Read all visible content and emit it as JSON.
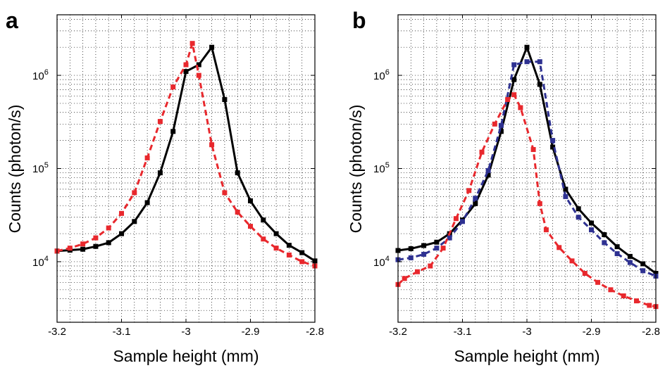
{
  "chart_data": [
    {
      "panel": "a",
      "type": "line",
      "xlabel": "Sample height (mm)",
      "ylabel": "Counts (photon/s)",
      "xlim": [
        -3.2,
        -2.8
      ],
      "ylim_log10": [
        3.35,
        6.65
      ],
      "yscale": "log",
      "grid": true,
      "xticks": [
        -3.2,
        -3.1,
        -3,
        -2.9,
        -2.8
      ],
      "xtick_labels": [
        "-3.2",
        "-3.1",
        "-3",
        "-2.9",
        "-2.8"
      ],
      "yticks": [
        {
          "value": 10000,
          "base": "10",
          "exp": "4"
        },
        {
          "value": 100000,
          "base": "10",
          "exp": "5"
        },
        {
          "value": 1000000,
          "base": "10",
          "exp": "6"
        }
      ],
      "series": [
        {
          "color": "#000000",
          "style": "solid",
          "marker": "square",
          "x": [
            -3.2,
            -3.18,
            -3.16,
            -3.14,
            -3.12,
            -3.1,
            -3.08,
            -3.06,
            -3.04,
            -3.02,
            -3.0,
            -2.98,
            -2.96,
            -2.94,
            -2.92,
            -2.9,
            -2.88,
            -2.86,
            -2.84,
            -2.82,
            -2.8
          ],
          "y": [
            13000,
            13300,
            13600,
            14600,
            16000,
            20000,
            27000,
            43000,
            90000,
            250000,
            1100000,
            1300000,
            2000000,
            550000,
            90000,
            45000,
            28000,
            20000,
            15000,
            12500,
            10200
          ]
        },
        {
          "color": "#e8282d",
          "style": "dashed",
          "marker": "square",
          "x": [
            -3.2,
            -3.18,
            -3.16,
            -3.14,
            -3.12,
            -3.1,
            -3.08,
            -3.06,
            -3.04,
            -3.02,
            -3.0,
            -2.99,
            -2.98,
            -2.96,
            -2.94,
            -2.92,
            -2.9,
            -2.88,
            -2.86,
            -2.84,
            -2.82,
            -2.8
          ],
          "y": [
            13000,
            14000,
            15500,
            18000,
            23000,
            33000,
            55000,
            130000,
            320000,
            750000,
            1300000,
            2200000,
            1000000,
            180000,
            55000,
            34000,
            24000,
            17500,
            14000,
            11800,
            10000,
            9000
          ]
        }
      ]
    },
    {
      "panel": "b",
      "type": "line",
      "xlabel": "Sample height (mm)",
      "ylabel": "Counts (photon/s)",
      "xlim": [
        -3.2,
        -2.8
      ],
      "ylim_log10": [
        3.35,
        6.65
      ],
      "yscale": "log",
      "grid": true,
      "xticks": [
        -3.2,
        -3.1,
        -3,
        -2.9,
        -2.8
      ],
      "xtick_labels": [
        "-3.2",
        "-3.1",
        "-3",
        "-2.9",
        "-2.8"
      ],
      "yticks": [
        {
          "value": 10000,
          "base": "10",
          "exp": "4"
        },
        {
          "value": 100000,
          "base": "10",
          "exp": "5"
        },
        {
          "value": 1000000,
          "base": "10",
          "exp": "6"
        }
      ],
      "series": [
        {
          "color": "#000000",
          "style": "solid",
          "marker": "square",
          "x": [
            -3.2,
            -3.18,
            -3.16,
            -3.14,
            -3.12,
            -3.1,
            -3.08,
            -3.06,
            -3.04,
            -3.02,
            -3.0,
            -2.98,
            -2.96,
            -2.94,
            -2.92,
            -2.9,
            -2.88,
            -2.86,
            -2.84,
            -2.82,
            -2.8
          ],
          "y": [
            13200,
            13800,
            14900,
            16200,
            20000,
            28000,
            42000,
            85000,
            250000,
            900000,
            2000000,
            800000,
            170000,
            60000,
            37000,
            26000,
            19500,
            14500,
            11400,
            9500,
            7500
          ]
        },
        {
          "color": "#2e3191",
          "style": "dashed",
          "marker": "square",
          "x": [
            -3.2,
            -3.18,
            -3.16,
            -3.14,
            -3.12,
            -3.1,
            -3.08,
            -3.06,
            -3.04,
            -3.02,
            -3.0,
            -2.98,
            -2.96,
            -2.94,
            -2.92,
            -2.9,
            -2.88,
            -2.86,
            -2.84,
            -2.82,
            -2.8
          ],
          "y": [
            10500,
            11000,
            12000,
            14000,
            18000,
            27000,
            48000,
            95000,
            290000,
            1300000,
            1400000,
            1400000,
            200000,
            50000,
            30000,
            22000,
            16000,
            12200,
            9800,
            8000,
            7000
          ]
        },
        {
          "color": "#e8282d",
          "style": "dashed",
          "marker": "square",
          "x": [
            -3.2,
            -3.19,
            -3.17,
            -3.15,
            -3.13,
            -3.11,
            -3.09,
            -3.07,
            -3.05,
            -3.03,
            -3.02,
            -3.01,
            -2.99,
            -2.98,
            -2.97,
            -2.95,
            -2.93,
            -2.91,
            -2.89,
            -2.87,
            -2.85,
            -2.83,
            -2.81,
            -2.8
          ],
          "y": [
            5700,
            6600,
            7800,
            9000,
            14000,
            29000,
            58000,
            150000,
            300000,
            550000,
            620000,
            450000,
            160000,
            42000,
            22000,
            14200,
            10200,
            7500,
            6000,
            5000,
            4300,
            3800,
            3400,
            3300
          ]
        }
      ]
    }
  ]
}
